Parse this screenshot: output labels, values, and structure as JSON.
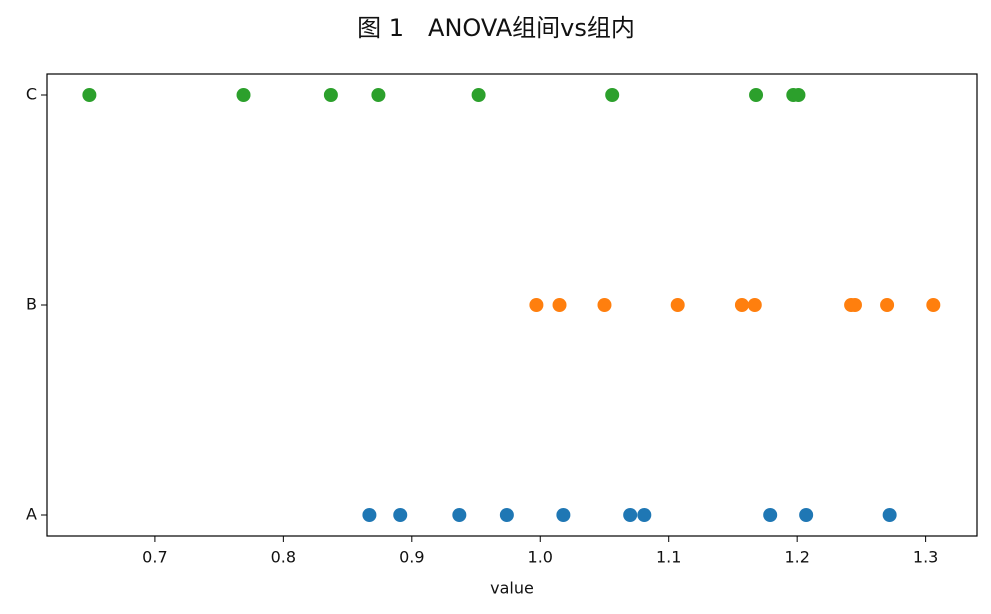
{
  "chart_data": {
    "type": "scatter",
    "title": "图 1　ANOVA组间vs组内",
    "x_label": "value",
    "series": [
      {
        "name": "A",
        "color": "#1f77b4",
        "values": [
          0.867,
          0.891,
          0.937,
          0.974,
          1.018,
          1.07,
          1.081,
          1.179,
          1.207,
          1.272
        ]
      },
      {
        "name": "B",
        "color": "#ff7f0e",
        "values": [
          0.997,
          1.015,
          1.05,
          1.107,
          1.157,
          1.167,
          1.242,
          1.245,
          1.27,
          1.306
        ]
      },
      {
        "name": "C",
        "color": "#2ca02c",
        "values": [
          0.649,
          0.769,
          0.837,
          0.874,
          0.952,
          1.056,
          1.168,
          1.197,
          1.201
        ]
      }
    ],
    "xlim": [
      0.616,
      1.34
    ],
    "xticks": [
      0.7,
      0.8,
      0.9,
      {
        "value": 1,
        "label": "1.0"
      },
      1.1,
      1.2,
      1.3
    ],
    "grid": false
  }
}
